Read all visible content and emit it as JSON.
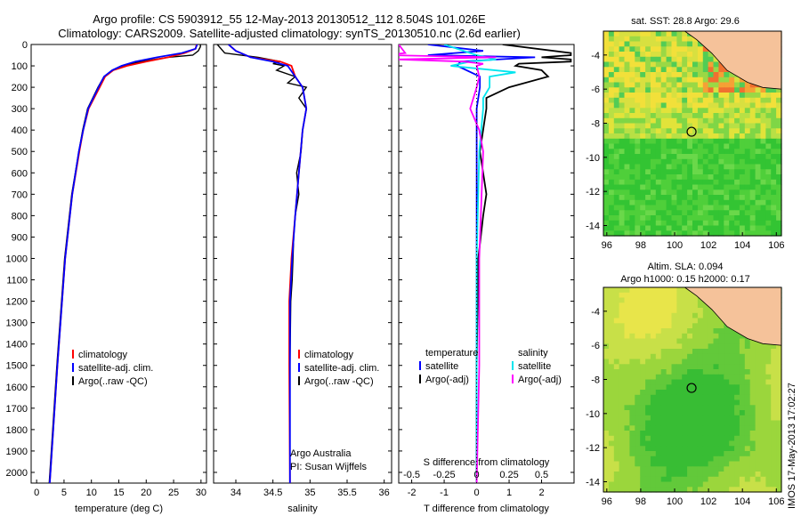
{
  "titles": {
    "line1": "Argo profile: CS 5903912_55 12-May-2013 20130512_112 8.504S 101.026E",
    "line2": "Climatology: CARS2009. Satellite-adjusted climatology: synTS_20130510.nc (2.6d earlier)"
  },
  "colors": {
    "climatology": "#ff0000",
    "satellite": "#0000ff",
    "argo": "#000000",
    "sat_salinity": "#00e5ee",
    "argo_salinity": "#ff00ff",
    "land": "#f5c29a"
  },
  "chart_data": [
    {
      "type": "line",
      "id": "temperature",
      "xlabel": "temperature (deg C)",
      "ylabel": "",
      "xlim": [
        -1,
        31
      ],
      "ylim": [
        2050,
        0
      ],
      "xticks": [
        "0",
        "5",
        "10",
        "15",
        "20",
        "25",
        "30"
      ],
      "yticks": [
        "0",
        "100",
        "200",
        "300",
        "400",
        "500",
        "600",
        "700",
        "800",
        "900",
        "1000",
        "1100",
        "1200",
        "1300",
        "1400",
        "1500",
        "1600",
        "1700",
        "1800",
        "1900",
        "2000"
      ],
      "legend": [
        "climatology",
        "satellite-adj. clim.",
        "Argo(..raw -QC)"
      ],
      "series": [
        {
          "name": "climatology",
          "depth": [
            0,
            20,
            40,
            60,
            80,
            100,
            120,
            150,
            200,
            300,
            400,
            500,
            700,
            1000,
            1500,
            2050
          ],
          "values": [
            29.2,
            29,
            27,
            24,
            20,
            16.5,
            14,
            12.5,
            11.5,
            9.5,
            8.5,
            7.8,
            6.5,
            5.2,
            3.8,
            2.4
          ]
        },
        {
          "name": "satellite-adj. clim.",
          "depth": [
            0,
            20,
            40,
            60,
            80,
            100,
            120,
            150,
            200,
            300,
            400,
            500,
            700,
            1000,
            1500,
            2050
          ],
          "values": [
            29.3,
            29,
            26.5,
            22,
            18,
            15.5,
            13.8,
            12.3,
            11.3,
            9.4,
            8.5,
            7.7,
            6.5,
            5.2,
            3.8,
            2.4
          ]
        },
        {
          "name": "Argo(..raw -QC)",
          "depth": [
            0,
            10,
            30,
            50,
            60,
            80,
            100,
            120,
            150,
            200,
            300,
            400,
            500,
            700,
            1000,
            1500,
            2050
          ],
          "values": [
            29.9,
            29.9,
            29.5,
            28.5,
            24,
            19,
            16,
            14,
            12.3,
            11.2,
            9.3,
            8.4,
            7.7,
            6.4,
            5.1,
            3.7,
            2.3
          ]
        }
      ]
    },
    {
      "type": "line",
      "id": "salinity",
      "xlabel": "salinity",
      "xlim": [
        33.7,
        36.1
      ],
      "ylim": [
        2050,
        0
      ],
      "xticks": [
        "34",
        "34.5",
        "35",
        "35.5",
        "36"
      ],
      "legend": [
        "climatology",
        "satellite-adj. clim.",
        "Argo(..raw -QC)"
      ],
      "annotation": [
        "Argo Australia",
        "PI: Susan Wijffels"
      ],
      "series": [
        {
          "name": "climatology",
          "depth": [
            0,
            30,
            60,
            80,
            100,
            150,
            200,
            300,
            400,
            600,
            800,
            1000,
            1200,
            1500,
            2050
          ],
          "values": [
            33.9,
            34.0,
            34.2,
            34.6,
            34.75,
            34.8,
            34.9,
            34.95,
            34.9,
            34.85,
            34.8,
            34.75,
            34.72,
            34.72,
            34.73
          ]
        },
        {
          "name": "satellite-adj. clim.",
          "depth": [
            0,
            30,
            60,
            80,
            100,
            150,
            200,
            300,
            400,
            600,
            800,
            1000,
            1200,
            1500,
            2050
          ],
          "values": [
            33.9,
            34.0,
            34.2,
            34.5,
            34.7,
            34.8,
            34.9,
            34.95,
            34.9,
            34.85,
            34.8,
            34.76,
            34.73,
            34.73,
            34.73
          ]
        },
        {
          "name": "Argo(..raw -QC)",
          "depth": [
            0,
            40,
            60,
            80,
            90,
            100,
            120,
            150,
            180,
            200,
            250,
            300,
            400,
            500,
            600,
            700,
            800,
            900,
            1000,
            1100,
            1200,
            1500,
            2050
          ],
          "values": [
            33.75,
            33.85,
            34.3,
            34.6,
            34.5,
            34.65,
            34.55,
            34.8,
            34.7,
            34.95,
            34.85,
            34.95,
            34.9,
            34.88,
            34.82,
            34.85,
            34.8,
            34.78,
            34.77,
            34.76,
            34.74,
            34.73,
            34.73
          ]
        }
      ]
    },
    {
      "type": "line",
      "id": "differences",
      "xlabel": "T difference from climatology",
      "x2label": "S difference from climatology",
      "xlim": [
        -2.4,
        3.0
      ],
      "ylim": [
        2050,
        0
      ],
      "xticks": [
        "-2",
        "-1",
        "0",
        "1",
        "2"
      ],
      "x2ticks": [
        "-0.5",
        "-0.25",
        "0",
        "0.25",
        "0.5"
      ],
      "legend_temperature": [
        "temperature",
        "satellite",
        "Argo(-adj)"
      ],
      "legend_salinity": [
        "salinity",
        "satellite",
        "Argo(-adj)"
      ],
      "series": [
        {
          "name": "temperature satellite",
          "depth": [
            0,
            30,
            50,
            60,
            80,
            100,
            150,
            200,
            300,
            500,
            1000,
            1500,
            2050
          ],
          "values": [
            -1.5,
            0.2,
            -1.5,
            1.8,
            -0.5,
            -0.6,
            0.1,
            0.1,
            0,
            0,
            0,
            0,
            0
          ]
        },
        {
          "name": "temperature Argo(-adj)",
          "depth": [
            0,
            40,
            50,
            60,
            70,
            80,
            90,
            100,
            120,
            150,
            200,
            250,
            300,
            500,
            700,
            800,
            1000,
            1500,
            2050
          ],
          "values": [
            0.8,
            2.9,
            2.9,
            2.0,
            2.9,
            2.9,
            1.3,
            1.2,
            2.0,
            2.2,
            1.0,
            0.3,
            0.3,
            0.1,
            0.3,
            0.2,
            0.05,
            0.0,
            0.0
          ]
        },
        {
          "name": "salinity satellite",
          "depth": [
            0,
            40,
            50,
            70,
            80,
            100,
            130,
            150,
            200,
            250,
            300,
            500,
            1000,
            1500,
            2050
          ],
          "values": [
            -0.25,
            -0.05,
            0.0,
            0.15,
            -0.05,
            -0.2,
            0.3,
            0.1,
            0.1,
            0.05,
            0.05,
            0.02,
            0,
            0,
            0
          ]
        },
        {
          "name": "salinity Argo(-adj)",
          "depth": [
            0,
            40,
            50,
            60,
            70,
            80,
            90,
            100,
            150,
            200,
            300,
            400,
            500,
            1000,
            1500,
            2050
          ],
          "values": [
            -0.6,
            -0.55,
            -0.7,
            0.15,
            -0.6,
            -0.1,
            0.05,
            0.0,
            0.02,
            0.0,
            -0.05,
            0.02,
            0.05,
            0.02,
            0.02,
            0.0
          ]
        }
      ]
    }
  ],
  "maps": [
    {
      "id": "sst",
      "title": "sat. SST: 28.8 Argo: 29.6",
      "xticks": [
        "96",
        "98",
        "100",
        "102",
        "104",
        "106"
      ],
      "yticks": [
        "-4",
        "-6",
        "-8",
        "-10",
        "-12",
        "-14"
      ],
      "marker": {
        "lon": 101.0,
        "lat": -8.5
      }
    },
    {
      "id": "sla",
      "title1": "Altim. SLA: 0.094",
      "title2": "Argo h1000: 0.15 h2000: 0.17",
      "xticks": [
        "96",
        "98",
        "100",
        "102",
        "104",
        "106"
      ],
      "yticks": [
        "-4",
        "-6",
        "-8",
        "-10",
        "-12",
        "-14"
      ],
      "marker": {
        "lon": 101.0,
        "lat": -8.5
      }
    }
  ],
  "credit": "IMOS 17-May-2013 17:02:27"
}
